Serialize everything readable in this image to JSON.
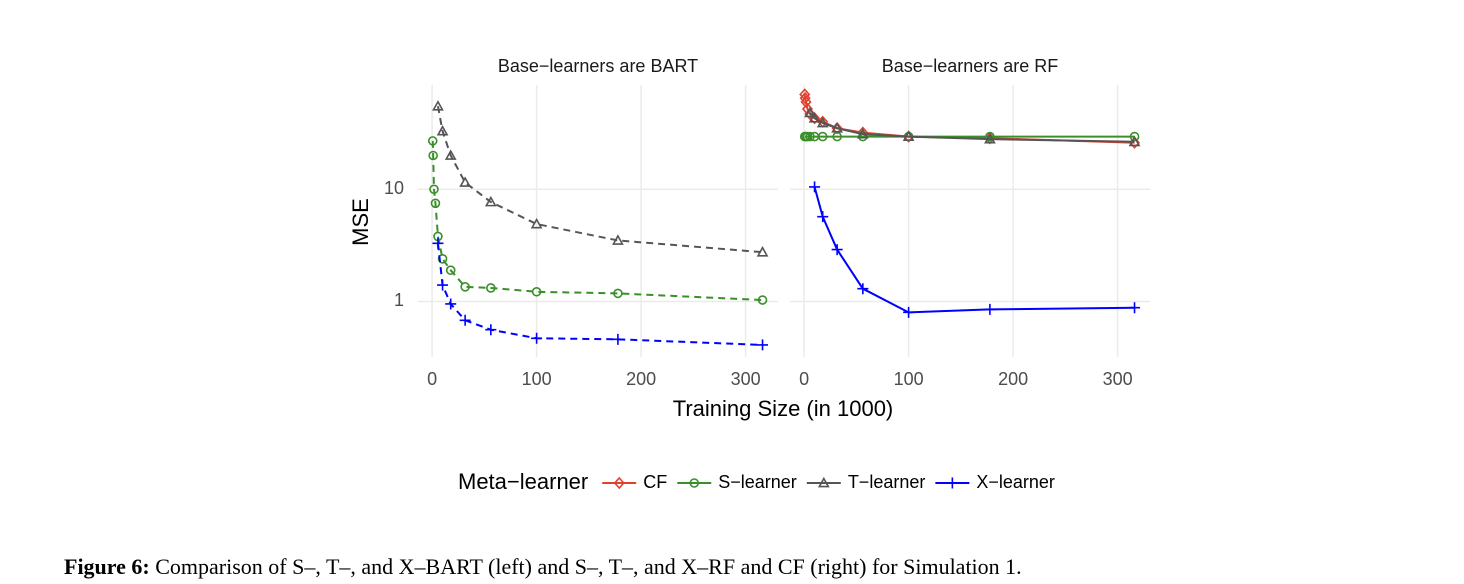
{
  "chart_data": {
    "type": "line",
    "log_y": true,
    "grid": true,
    "ylabel": "MSE",
    "xlabel": "Training Size (in 1000)",
    "legend_title": "Meta−learner",
    "legend_position": "bottom",
    "x": [
      0.6,
      1,
      1.8,
      3.2,
      5.6,
      10,
      17.8,
      31.6,
      56.2,
      100,
      177.8,
      316.2
    ],
    "xlim": [
      -13.5,
      331
    ],
    "xticks": [
      0,
      100,
      200,
      300
    ],
    "ylim": [
      0.32,
      85
    ],
    "yticks": [
      1,
      10
    ],
    "series": [
      {
        "name": "CF",
        "color": "#e0412f",
        "marker": "diamond"
      },
      {
        "name": "S−learner",
        "color": "#3a8f2a",
        "marker": "circle"
      },
      {
        "name": "T−learner",
        "color": "#555555",
        "marker": "triangle"
      },
      {
        "name": "X−learner",
        "color": "#0000ff",
        "marker": "plus"
      }
    ],
    "panels": [
      {
        "title": "Base−learners are BART",
        "line_style": "dashed",
        "series": [
          {
            "values": [
              null,
              null,
              null,
              null,
              null,
              null,
              null,
              null,
              null,
              null,
              null,
              null
            ]
          },
          {
            "values": [
              27,
              20,
              10,
              7.5,
              3.8,
              2.4,
              1.9,
              1.35,
              1.32,
              1.22,
              1.18,
              1.03
            ]
          },
          {
            "values": [
              null,
              null,
              null,
              null,
              55,
              33,
              20,
              11.5,
              7.7,
              4.9,
              3.5,
              2.75
            ]
          },
          {
            "values": [
              null,
              null,
              null,
              null,
              3.3,
              1.4,
              0.95,
              0.68,
              0.56,
              0.47,
              0.46,
              0.41
            ]
          }
        ]
      },
      {
        "title": "Base−learners are RF",
        "line_style": "solid",
        "series": [
          {
            "values": [
              70,
              65,
              60,
              52,
              47,
              43,
              40,
              35,
              32,
              29.5,
              28.5,
              26
            ]
          },
          {
            "values": [
              29.5,
              29.5,
              29.5,
              29.5,
              29.5,
              29.5,
              29.5,
              29.5,
              29.5,
              29.5,
              29.5,
              29.5
            ]
          },
          {
            "values": [
              null,
              null,
              null,
              null,
              48,
              43,
              39,
              35,
              31,
              29.5,
              28,
              26.5
            ]
          },
          {
            "values": [
              null,
              null,
              null,
              null,
              null,
              10.5,
              5.7,
              2.9,
              1.3,
              0.8,
              0.85,
              0.88
            ]
          }
        ]
      }
    ]
  },
  "caption": {
    "label": "Figure 6:",
    "text": "Comparison of S–, T–, and X–BART (left) and S–, T–, and X–RF and CF (right) for Simulation 1."
  }
}
